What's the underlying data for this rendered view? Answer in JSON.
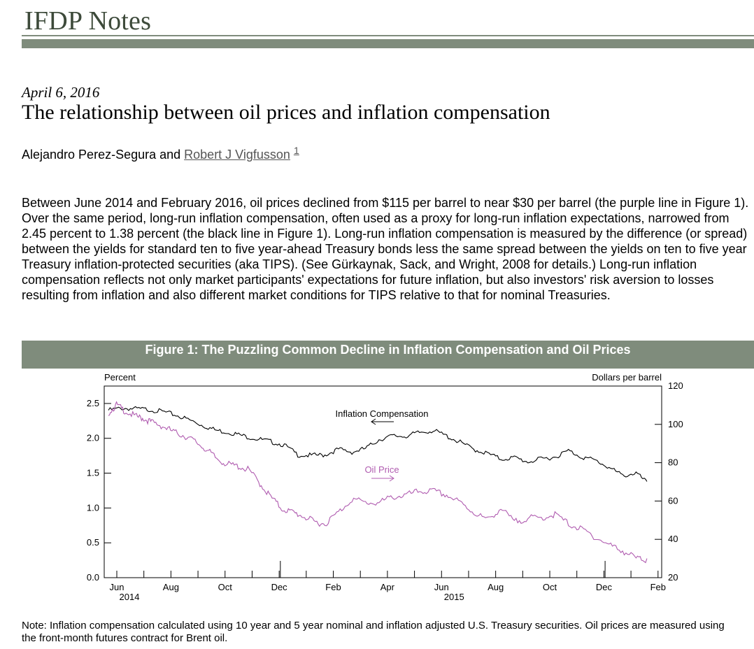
{
  "header": {
    "site_title": "IFDP Notes"
  },
  "article": {
    "date": "April 6, 2016",
    "title": "The relationship between oil prices and inflation compensation",
    "authors_prefix": "Alejandro Perez-Segura and ",
    "author_link": "Robert J Vigfusson",
    "footnote_ref": "1",
    "body": "Between June 2014 and February 2016, oil prices declined from $115 per barrel to near $30 per barrel (the purple line in Figure 1). Over the same period, long-run inflation compensation, often used as a proxy for long-run inflation expectations, narrowed from 2.45 percent to 1.38 percent (the black line in Figure 1). Long-run inflation compensation is measured by the difference (or spread) between the yields for standard ten to five year-ahead Treasury bonds less the same spread between the yields on ten to five year Treasury inflation-protected securities (aka TIPS). (See Gürkaynak, Sack, and Wright, 2008 for details.) Long-run inflation compensation reflects not only market participants' expectations for future inflation, but also investors' risk aversion to losses resulting from inflation and also different market conditions for TIPS relative to that for nominal Treasuries."
  },
  "figure": {
    "banner": "Figure 1: The Puzzling Common Decline in Inflation Compensation and Oil Prices",
    "note": "Note: Inflation compensation calculated using 10 year and 5 year nominal and inflation adjusted U.S. Treasury securities. Oil prices are measured using the front-month futures contract for Brent oil."
  },
  "chart_data": {
    "type": "line",
    "title": "Figure 1: The Puzzling Common Decline in Inflation Compensation and Oil Prices",
    "left_axis": {
      "label": "Percent",
      "range": [
        0,
        2.75
      ],
      "ticks": [
        "0.0",
        "0.5",
        "1.0",
        "1.5",
        "2.0",
        "2.5"
      ],
      "tick_values": [
        0,
        0.5,
        1.0,
        1.5,
        2.0,
        2.5
      ]
    },
    "right_axis": {
      "label": "Dollars per barrel",
      "range": [
        20,
        120
      ],
      "ticks": [
        "20",
        "40",
        "60",
        "80",
        "100",
        "120"
      ],
      "tick_values": [
        20,
        40,
        60,
        80,
        100,
        120
      ]
    },
    "x_axis": {
      "range": [
        0,
        20.6
      ],
      "ticks": [
        {
          "m": 0,
          "label": "Jun",
          "sub": "2014"
        },
        {
          "m": 2,
          "label": "Aug",
          "sub": ""
        },
        {
          "m": 4,
          "label": "Oct",
          "sub": ""
        },
        {
          "m": 6,
          "label": "Dec",
          "sub": ""
        },
        {
          "m": 8,
          "label": "Feb",
          "sub": ""
        },
        {
          "m": 10,
          "label": "Apr",
          "sub": ""
        },
        {
          "m": 12,
          "label": "Jun",
          "sub": "2015"
        },
        {
          "m": 14,
          "label": "Aug",
          "sub": ""
        },
        {
          "m": 16,
          "label": "Oct",
          "sub": ""
        },
        {
          "m": 18,
          "label": "Dec",
          "sub": ""
        },
        {
          "m": 20,
          "label": "Feb",
          "sub": ""
        }
      ],
      "year_tick_months": [
        7,
        19
      ]
    },
    "series": [
      {
        "name": "Inflation Compensation",
        "axis": "left",
        "color": "#000000",
        "x": [
          0,
          0.5,
          1,
          1.5,
          2,
          2.5,
          3,
          3.5,
          4,
          4.5,
          5,
          5.5,
          6,
          6.5,
          7,
          7.5,
          8,
          8.5,
          9,
          9.5,
          10,
          10.5,
          11,
          11.5,
          12,
          12.5,
          13,
          13.5,
          14,
          14.5,
          15,
          15.5,
          16,
          16.5,
          17,
          17.5,
          18,
          18.5,
          19,
          19.5,
          19.9
        ],
        "values": [
          2.42,
          2.45,
          2.44,
          2.43,
          2.4,
          2.35,
          2.28,
          2.2,
          2.13,
          2.1,
          2.05,
          2.01,
          1.97,
          1.92,
          1.78,
          1.77,
          1.78,
          1.86,
          1.82,
          1.87,
          2.0,
          2.05,
          2.05,
          2.1,
          2.13,
          2.05,
          1.96,
          1.86,
          1.8,
          1.72,
          1.74,
          1.68,
          1.72,
          1.75,
          1.84,
          1.75,
          1.7,
          1.6,
          1.48,
          1.52,
          1.38
        ]
      },
      {
        "name": "Oil Price",
        "axis": "right",
        "color": "#b05cb0",
        "x": [
          0,
          0.3,
          0.6,
          1,
          1.3,
          1.6,
          2,
          2.4,
          2.8,
          3.2,
          3.6,
          4,
          4.4,
          4.8,
          5.2,
          5.6,
          6,
          6.4,
          6.8,
          7.2,
          7.6,
          8,
          8.5,
          9,
          9.5,
          10,
          10.5,
          11,
          11.5,
          12,
          12.5,
          13,
          13.5,
          14,
          14.5,
          15,
          15.5,
          16,
          16.5,
          17,
          17.5,
          18,
          18.5,
          19,
          19.5,
          19.9
        ],
        "values": [
          107,
          111,
          108,
          105,
          104,
          102,
          100,
          97,
          95,
          92,
          88,
          83,
          80,
          79,
          77,
          70,
          63,
          57,
          55,
          53,
          50,
          49,
          55,
          62,
          60,
          60,
          63,
          64,
          66,
          66,
          64,
          60,
          55,
          51,
          57,
          50,
          52,
          52,
          54,
          49,
          46,
          42,
          38,
          35,
          31,
          30
        ]
      }
    ],
    "annotations": [
      {
        "text": "Inflation Compensation",
        "series": "Inflation Compensation",
        "arrow": "left"
      },
      {
        "text": "Oil Price",
        "series": "Oil Price",
        "arrow": "right"
      }
    ]
  }
}
